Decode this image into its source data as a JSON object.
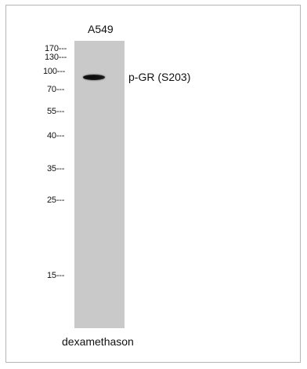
{
  "blot": {
    "lane_label": "A549",
    "band_label": "p-GR (S203)",
    "sample_label": "dexamethason",
    "markers": [
      "170---",
      "130---",
      "100---",
      "70---",
      "55---",
      "40---",
      "35---",
      "25---",
      "15---"
    ]
  }
}
